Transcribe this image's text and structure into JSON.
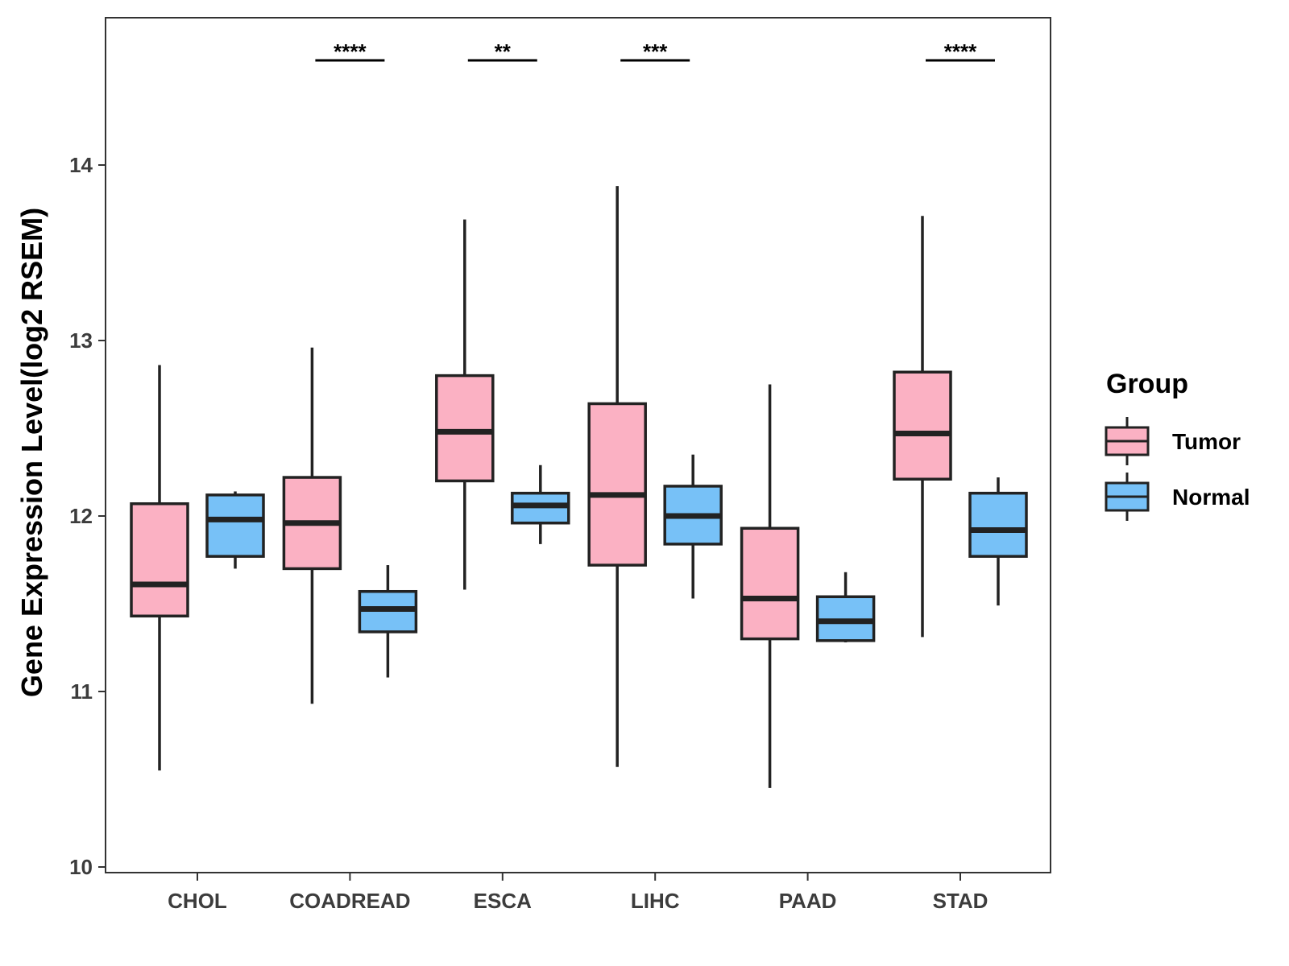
{
  "chart_data": {
    "type": "boxplot",
    "title": "",
    "xlabel": "",
    "ylabel": "Gene Expression Level(log2 RSEM)",
    "ylim": [
      10,
      14.8
    ],
    "yticks": [
      10,
      11,
      12,
      13,
      14
    ],
    "categories": [
      "CHOL",
      "COADREAD",
      "ESCA",
      "LIHC",
      "PAAD",
      "STAD"
    ],
    "legend": {
      "title": "Group",
      "position": "right",
      "entries": [
        {
          "name": "Tumor",
          "color": "#fbb1c3"
        },
        {
          "name": "Normal",
          "color": "#77c1f7"
        }
      ]
    },
    "series": [
      {
        "name": "Tumor",
        "color": "#fbb1c3",
        "boxes": [
          {
            "min": 10.55,
            "q1": 11.43,
            "median": 11.61,
            "q3": 12.07,
            "max": 12.86
          },
          {
            "min": 10.93,
            "q1": 11.7,
            "median": 11.96,
            "q3": 12.22,
            "max": 12.96
          },
          {
            "min": 11.58,
            "q1": 12.2,
            "median": 12.48,
            "q3": 12.8,
            "max": 13.69
          },
          {
            "min": 10.57,
            "q1": 11.72,
            "median": 12.12,
            "q3": 12.64,
            "max": 13.88
          },
          {
            "min": 10.45,
            "q1": 11.3,
            "median": 11.53,
            "q3": 11.93,
            "max": 12.75
          },
          {
            "min": 11.31,
            "q1": 12.21,
            "median": 12.47,
            "q3": 12.82,
            "max": 13.71
          }
        ]
      },
      {
        "name": "Normal",
        "color": "#77c1f7",
        "boxes": [
          {
            "min": 11.7,
            "q1": 11.77,
            "median": 11.98,
            "q3": 12.12,
            "max": 12.14
          },
          {
            "min": 11.08,
            "q1": 11.34,
            "median": 11.47,
            "q3": 11.57,
            "max": 11.72
          },
          {
            "min": 11.84,
            "q1": 11.96,
            "median": 12.06,
            "q3": 12.13,
            "max": 12.29
          },
          {
            "min": 11.53,
            "q1": 11.84,
            "median": 12.0,
            "q3": 12.17,
            "max": 12.35
          },
          {
            "min": 11.28,
            "q1": 11.29,
            "median": 11.4,
            "q3": 11.54,
            "max": 11.68
          },
          {
            "min": 11.49,
            "q1": 11.77,
            "median": 11.92,
            "q3": 12.13,
            "max": 12.22
          }
        ]
      }
    ],
    "significance": [
      {
        "category": "COADREAD",
        "label": "****"
      },
      {
        "category": "ESCA",
        "label": "**"
      },
      {
        "category": "LIHC",
        "label": "***"
      },
      {
        "category": "STAD",
        "label": "****"
      }
    ]
  }
}
